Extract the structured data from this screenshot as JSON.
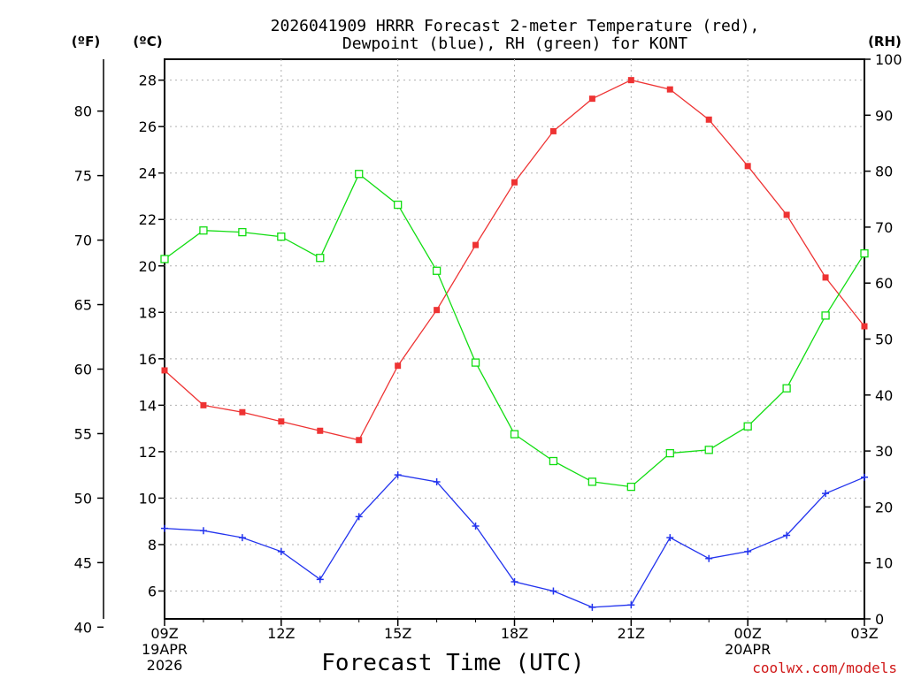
{
  "chart_data": {
    "type": "line",
    "title_line1": "2026041909 HRRR Forecast 2-meter Temperature (red),",
    "title_line2": "Dewpoint (blue), RH (green) for KONT",
    "xlabel": "Forecast Time (UTC)",
    "credit": "coolwx.com/models",
    "units": {
      "fahrenheit": "(ºF)",
      "celsius": "(ºC)",
      "rh": "(RH)"
    },
    "x_hours": [
      0,
      1,
      2,
      3,
      4,
      5,
      6,
      7,
      8,
      9,
      10,
      11,
      12,
      13,
      14,
      15,
      16,
      17,
      18
    ],
    "x_ticks": [
      {
        "hour": 0,
        "label": "09Z",
        "sub1": "19APR",
        "sub2": "2026"
      },
      {
        "hour": 3,
        "label": "12Z"
      },
      {
        "hour": 6,
        "label": "15Z"
      },
      {
        "hour": 9,
        "label": "18Z"
      },
      {
        "hour": 12,
        "label": "21Z"
      },
      {
        "hour": 15,
        "label": "00Z",
        "sub1": "20APR"
      },
      {
        "hour": 18,
        "label": "03Z"
      }
    ],
    "celsius_axis": {
      "ylim": [
        4.8,
        28.9
      ],
      "ticks": [
        "6",
        "8",
        "10",
        "12",
        "14",
        "16",
        "18",
        "20",
        "22",
        "24",
        "26",
        "28"
      ]
    },
    "fahrenheit_axis": {
      "ticks": [
        "40",
        "45",
        "50",
        "55",
        "60",
        "65",
        "70",
        "75",
        "80"
      ]
    },
    "rh_axis": {
      "ylim": [
        0,
        100
      ],
      "ticks": [
        "0",
        "10",
        "20",
        "30",
        "40",
        "50",
        "60",
        "70",
        "80",
        "90",
        "100"
      ]
    },
    "series": [
      {
        "name": "Temperature",
        "axis": "celsius",
        "color": "#ee3333",
        "marker": "filled-square",
        "values": [
          15.5,
          14.0,
          13.7,
          13.3,
          12.9,
          12.5,
          15.7,
          18.1,
          20.9,
          23.6,
          25.8,
          27.2,
          28.0,
          27.6,
          26.3,
          24.3,
          22.2,
          19.5,
          17.4
        ]
      },
      {
        "name": "Dewpoint",
        "axis": "celsius",
        "color": "#2233ee",
        "marker": "plus",
        "values": [
          8.7,
          8.6,
          8.3,
          7.7,
          6.5,
          9.2,
          11.0,
          10.7,
          8.8,
          6.4,
          6.0,
          5.3,
          5.4,
          8.3,
          7.4,
          7.7,
          8.4,
          10.2,
          10.9
        ]
      },
      {
        "name": "RH",
        "axis": "rh",
        "color": "#11dd11",
        "marker": "open-square",
        "values": [
          64.3,
          69.4,
          69.1,
          68.3,
          64.5,
          79.5,
          74.0,
          62.2,
          45.8,
          33.0,
          28.2,
          24.5,
          23.6,
          29.6,
          30.2,
          34.4,
          41.2,
          54.2,
          65.3
        ]
      }
    ]
  }
}
